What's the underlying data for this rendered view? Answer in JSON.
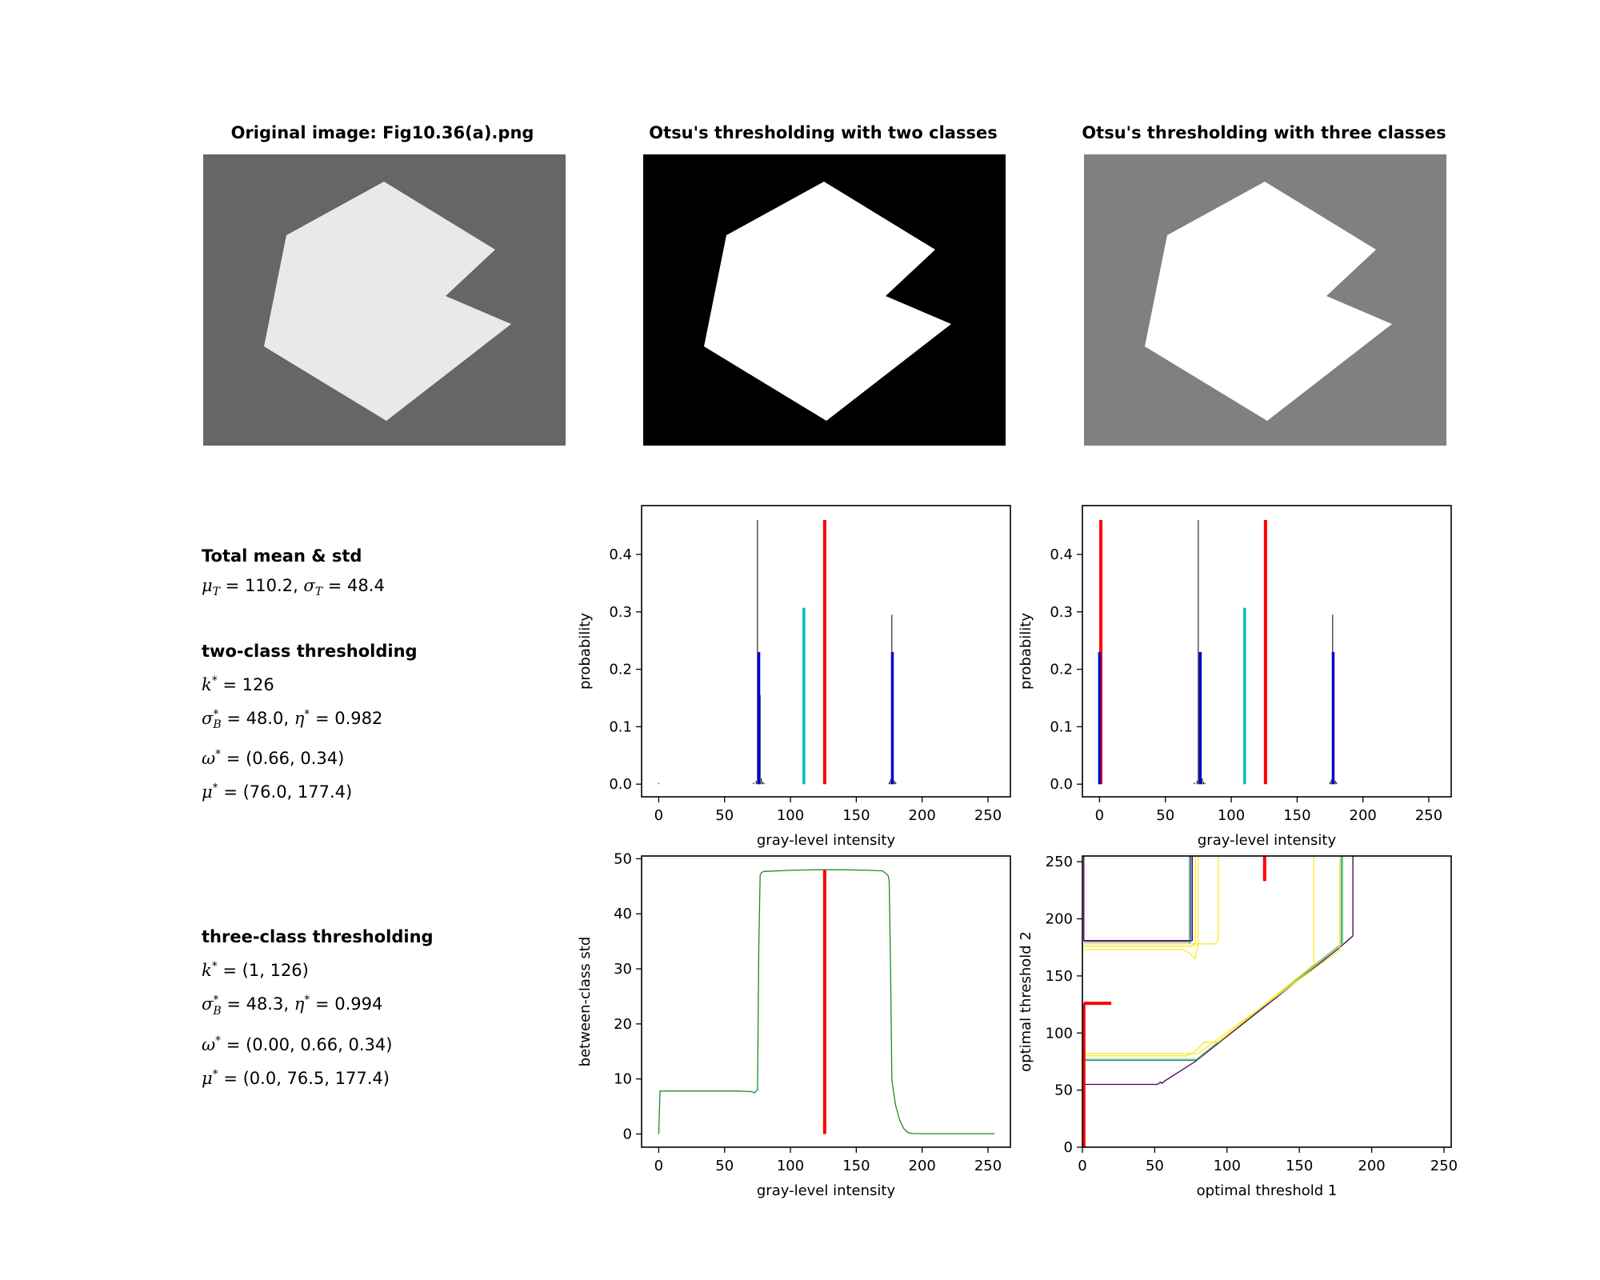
{
  "titles": {
    "original": "Original image: Fig10.36(a).png",
    "two_class": "Otsu's thresholding with two classes",
    "three_class": "Otsu's thresholding with three classes"
  },
  "images": {
    "original": {
      "background": "#666666",
      "shape": "#e9e9e9"
    },
    "two_class": {
      "background": "#000000",
      "shape": "#ffffff"
    },
    "three_class": {
      "background": "#808080",
      "shape": "#ffffff"
    }
  },
  "stats": {
    "total_head": "Total mean & std",
    "total_line": {
      "mu_sym": "μ",
      "mu_sub": "T",
      "mu_val": " = 110.2, ",
      "sig_sym": "σ",
      "sig_sub": "T",
      "sig_val": " = 48.4"
    },
    "two_head": "two-class thresholding",
    "two_k": {
      "sym": "k",
      "val": " = 126"
    },
    "two_sigma": {
      "sym": "σ",
      "sub": "B",
      "mid": " = 48.0, ",
      "eta": "η",
      "val": " = 0.982"
    },
    "two_omega": {
      "sym": "ω",
      "val": " = (0.66, 0.34)"
    },
    "two_mu": {
      "sym": "μ",
      "val": " = (76.0, 177.4)"
    },
    "three_head": "three-class thresholding",
    "three_k": {
      "sym": "k",
      "val": " = (1, 126)"
    },
    "three_sigma": {
      "sym": "σ",
      "sub": "B",
      "mid": " = 48.3, ",
      "eta": "η",
      "val": " = 0.994"
    },
    "three_omega": {
      "sym": "ω",
      "val": " = (0.00, 0.66, 0.34)"
    },
    "three_mu": {
      "sym": "μ",
      "val": " = (0.0, 76.5, 177.4)"
    },
    "star": "*"
  },
  "colors": {
    "threshold": "#ff0000",
    "mean_total": "#00bfbf",
    "class_mean": "#0000cc",
    "histogram": "#000000",
    "between_class": "#228b22"
  },
  "chart_data": [
    {
      "type": "bar",
      "id": "hist-two",
      "xlabel": "gray-level intensity",
      "ylabel": "probability",
      "xlim": [
        -13,
        267
      ],
      "ylim": [
        -0.022,
        0.485
      ],
      "xticks": [
        0,
        50,
        100,
        150,
        200,
        250
      ],
      "yticks": [
        0.0,
        0.1,
        0.2,
        0.3,
        0.4
      ],
      "histogram": {
        "x": [
          0,
          72,
          74,
          75,
          76,
          77,
          78,
          79,
          80,
          175,
          176,
          177,
          178,
          179,
          180
        ],
        "y": [
          0.002,
          0.003,
          0.006,
          0.46,
          0.02,
          0.155,
          0.01,
          0.004,
          0.002,
          0.004,
          0.008,
          0.295,
          0.012,
          0.006,
          0.003
        ]
      },
      "vlines": [
        {
          "x": 126,
          "y": 0.46,
          "kind": "threshold"
        },
        {
          "x": 110.2,
          "y": 0.307,
          "kind": "mean_total"
        },
        {
          "x": 76.0,
          "y": 0.23,
          "kind": "class_mean"
        },
        {
          "x": 177.4,
          "y": 0.23,
          "kind": "class_mean"
        }
      ]
    },
    {
      "type": "bar",
      "id": "hist-three",
      "xlabel": "gray-level intensity",
      "ylabel": "probability",
      "xlim": [
        -13,
        267
      ],
      "ylim": [
        -0.022,
        0.485
      ],
      "xticks": [
        0,
        50,
        100,
        150,
        200,
        250
      ],
      "yticks": [
        0.0,
        0.1,
        0.2,
        0.3,
        0.4
      ],
      "histogram": {
        "x": [
          0,
          72,
          74,
          75,
          76,
          77,
          78,
          79,
          80,
          175,
          176,
          177,
          178,
          179,
          180
        ],
        "y": [
          0.002,
          0.003,
          0.006,
          0.46,
          0.02,
          0.155,
          0.01,
          0.004,
          0.002,
          0.004,
          0.008,
          0.295,
          0.012,
          0.006,
          0.003
        ]
      },
      "vlines": [
        {
          "x": 1,
          "y": 0.46,
          "kind": "threshold"
        },
        {
          "x": 126,
          "y": 0.46,
          "kind": "threshold"
        },
        {
          "x": 110.2,
          "y": 0.307,
          "kind": "mean_total"
        },
        {
          "x": 0.0,
          "y": 0.23,
          "kind": "class_mean"
        },
        {
          "x": 76.5,
          "y": 0.23,
          "kind": "class_mean"
        },
        {
          "x": 177.4,
          "y": 0.23,
          "kind": "class_mean"
        }
      ]
    },
    {
      "type": "line",
      "id": "between-class",
      "xlabel": "gray-level intensity",
      "ylabel": "between-class std",
      "xlim": [
        -13,
        267
      ],
      "ylim": [
        -2.4,
        50.5
      ],
      "xticks": [
        0,
        50,
        100,
        150,
        200,
        250
      ],
      "yticks": [
        0,
        10,
        20,
        30,
        40,
        50
      ],
      "series": [
        {
          "x": [
            0,
            1,
            20,
            40,
            60,
            70,
            73,
            74,
            75,
            76,
            77,
            78,
            80,
            100,
            120,
            140,
            160,
            170,
            174,
            175,
            176,
            177,
            178,
            180,
            183,
            186,
            189,
            192,
            200,
            230,
            255
          ],
          "y": [
            0,
            7.8,
            7.8,
            7.8,
            7.8,
            7.7,
            7.5,
            7.8,
            8.0,
            34.0,
            47.0,
            47.5,
            47.7,
            47.9,
            48.0,
            48.0,
            47.9,
            47.8,
            47.0,
            46.0,
            30.0,
            10.0,
            8.0,
            5.0,
            2.5,
            1.0,
            0.3,
            0.1,
            0.05,
            0.05,
            0.05
          ]
        }
      ],
      "vlines": [
        {
          "x": 126,
          "y0": 0,
          "y1": 48.0,
          "kind": "threshold"
        }
      ]
    },
    {
      "type": "line",
      "id": "contour-map",
      "xlabel": "optimal threshold 1",
      "ylabel": "optimal threshold 2",
      "xlim": [
        0,
        255
      ],
      "ylim": [
        0,
        255
      ],
      "xticks": [
        0,
        50,
        100,
        150,
        200,
        250
      ],
      "yticks": [
        0,
        50,
        100,
        150,
        200,
        250
      ],
      "contours": [
        {
          "color": "#440154",
          "points": [
            [
              1,
              255
            ],
            [
              1,
              181
            ],
            [
              76,
              181
            ],
            [
              76,
              255
            ]
          ]
        },
        {
          "color": "#440154",
          "points": [
            [
              1,
              55
            ],
            [
              52,
              55
            ],
            [
              54,
              57
            ],
            [
              55,
              56
            ],
            [
              57,
              58
            ],
            [
              78,
              75
            ],
            [
              178,
              175
            ],
            [
              187,
              185
            ],
            [
              187,
              255
            ]
          ]
        },
        {
          "color": "#3b528b",
          "points": [
            [
              1,
              180
            ],
            [
              75,
              180
            ],
            [
              75,
              255
            ]
          ]
        },
        {
          "color": "#21918c",
          "points": [
            [
              1,
              178
            ],
            [
              74,
              178
            ],
            [
              74,
              255
            ]
          ]
        },
        {
          "color": "#21918c",
          "points": [
            [
              1,
              76
            ],
            [
              78,
              76
            ],
            [
              80,
              78
            ],
            [
              176,
              175
            ],
            [
              179,
              178
            ],
            [
              179,
              255
            ]
          ]
        },
        {
          "color": "#5ec962",
          "points": [
            [
              1,
              77
            ],
            [
              79,
              77
            ],
            [
              177,
              176
            ],
            [
              180,
              179
            ],
            [
              180,
              255
            ]
          ]
        },
        {
          "color": "#fde725",
          "points": [
            [
              1,
              176
            ],
            [
              76,
              176
            ],
            [
              78,
              178
            ],
            [
              78,
              255
            ]
          ]
        },
        {
          "color": "#fde725",
          "points": [
            [
              1,
              173
            ],
            [
              70,
              173
            ],
            [
              74,
              170
            ],
            [
              78,
              165
            ],
            [
              80,
              178
            ],
            [
              80,
              255
            ]
          ]
        },
        {
          "color": "#fde725",
          "points": [
            [
              1,
              178
            ],
            [
              92,
              178
            ],
            [
              94,
              182
            ],
            [
              94,
              255
            ]
          ]
        },
        {
          "color": "#fde725",
          "points": [
            [
              1,
              80
            ],
            [
              72,
              80
            ],
            [
              76,
              82
            ],
            [
              80,
              86
            ],
            [
              84,
              92
            ],
            [
              94,
              92
            ],
            [
              160,
              160
            ],
            [
              160,
              255
            ]
          ]
        },
        {
          "color": "#fde725",
          "points": [
            [
              1,
              82
            ],
            [
              80,
              82
            ],
            [
              175,
              170
            ],
            [
              178,
              173
            ],
            [
              178,
              255
            ]
          ]
        }
      ],
      "vlines": [
        {
          "x": 1,
          "y0": 0,
          "y1": 126,
          "kind": "threshold"
        },
        {
          "x": 126,
          "y0": 233,
          "y1": 255,
          "kind": "threshold"
        }
      ],
      "hlines": [
        {
          "y": 126,
          "x0": 1,
          "x1": 20,
          "kind": "threshold"
        }
      ]
    }
  ]
}
